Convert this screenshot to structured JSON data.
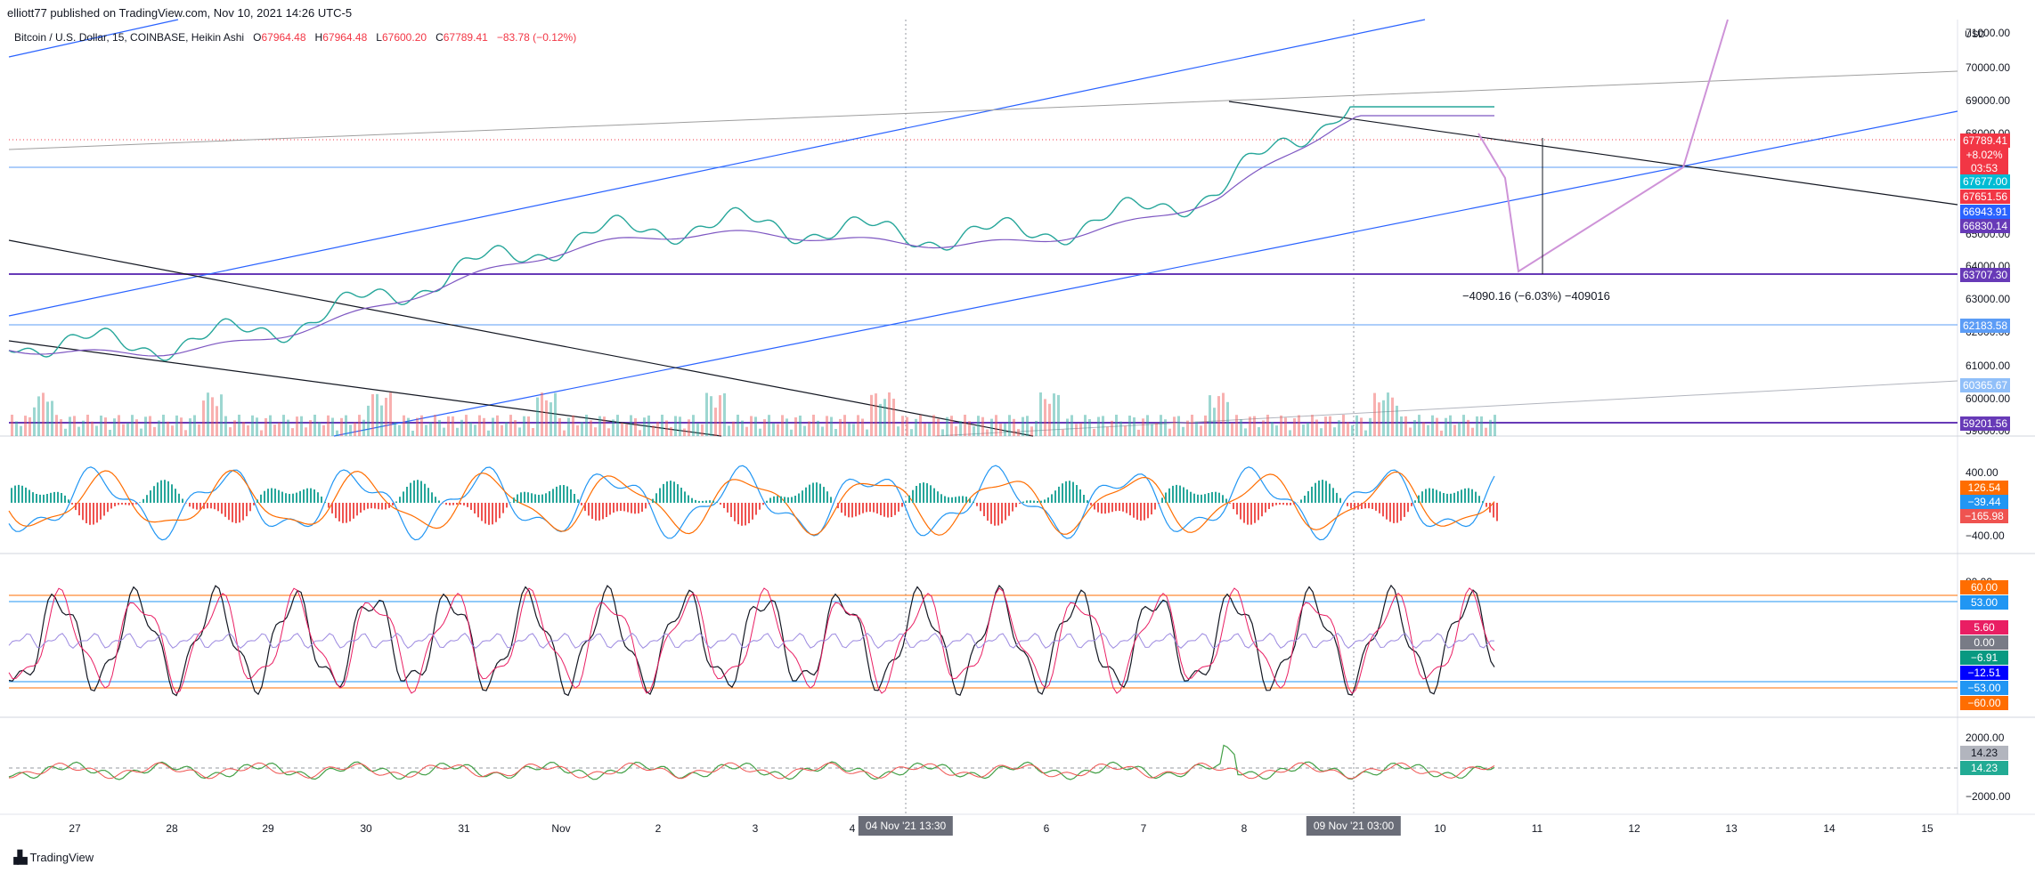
{
  "header": {
    "publish_line": "elliott77 published on TradingView.com, Nov 10, 2021 14:26 UTC-5",
    "symbol": "Bitcoin / U.S. Dollar, 15, COINBASE, Heikin Ashi",
    "o_label": "O",
    "o_value": "67964.48",
    "h_label": "H",
    "h_value": "67964.48",
    "l_label": "L",
    "l_value": "67600.20",
    "c_label": "C",
    "c_value": "67789.41",
    "change": "−83.78 (−0.12%)"
  },
  "axis": {
    "currency": "USD",
    "price_labels": [
      "71000.00",
      "70000.00",
      "69000.00",
      "68000.00",
      "65000.00",
      "64000.00",
      "63000.00",
      "62000.00",
      "61000.00",
      "60000.00",
      "59000.00"
    ],
    "macd_labels": [
      "400.00",
      "−400.00"
    ],
    "rsi_labels": [
      "80.00"
    ],
    "obv_labels": [
      "2000.00",
      "−2000.00"
    ]
  },
  "price_tags": [
    {
      "text": "67789.41",
      "color": "#f23645"
    },
    {
      "text": "+8.02%",
      "color": "#f23645"
    },
    {
      "text": "03:53",
      "color": "#f23645"
    },
    {
      "text": "67677.00",
      "color": "#00bcd4"
    },
    {
      "text": "67651.56",
      "color": "#f23645"
    },
    {
      "text": "66943.91",
      "color": "#2962ff"
    },
    {
      "text": "66830.14",
      "color": "#673ab7"
    },
    {
      "text": "63707.30",
      "color": "#673ab7"
    },
    {
      "text": "62183.58",
      "color": "#5b9cf6"
    },
    {
      "text": "60365.67",
      "color": "#90bff9"
    },
    {
      "text": "59201.56",
      "color": "#673ab7"
    }
  ],
  "macd_tags": [
    {
      "text": "126.54",
      "color": "#ff6d00"
    },
    {
      "text": "−39.44",
      "color": "#2196f3"
    },
    {
      "text": "−165.98",
      "color": "#ef5350"
    }
  ],
  "rsi_tags": [
    {
      "text": "60.00",
      "color": "#ff6d00"
    },
    {
      "text": "53.00",
      "color": "#2196f3"
    },
    {
      "text": "5.60",
      "color": "#e91e63"
    },
    {
      "text": "0.00",
      "color": "#787b86"
    },
    {
      "text": "−6.91",
      "color": "#089981"
    },
    {
      "text": "−12.51",
      "color": "#0000ff"
    },
    {
      "text": "−53.00",
      "color": "#2196f3"
    },
    {
      "text": "−60.00",
      "color": "#ff6d00"
    }
  ],
  "obv_tags": [
    {
      "text": "14.23",
      "color": "#b2b5be"
    },
    {
      "text": "14.23",
      "color": "#22ab94"
    }
  ],
  "measure_text": "−4090.16 (−6.03%) −409016",
  "dates": [
    "27",
    "28",
    "29",
    "30",
    "31",
    "Nov",
    "2",
    "3",
    "4",
    "6",
    "7",
    "8",
    "10",
    "11",
    "12",
    "13",
    "14",
    "15"
  ],
  "crosshair_tags": [
    "04 Nov '21   13:30",
    "09 Nov '21   03:00"
  ],
  "branding": "TradingView"
}
